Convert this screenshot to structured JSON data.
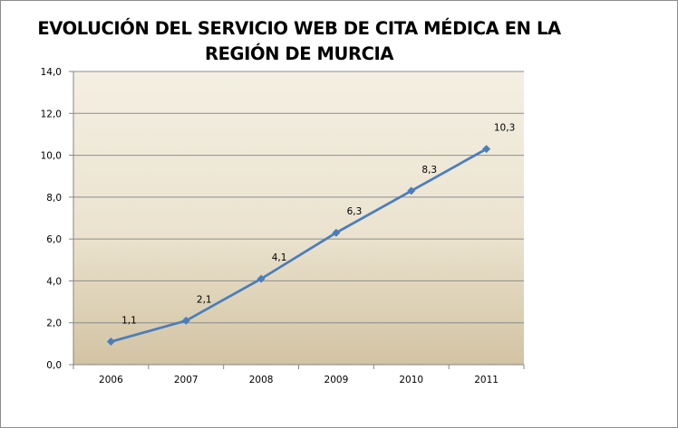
{
  "chart_data": {
    "type": "line",
    "title_lines": [
      "EVOLUCIÓN DEL SERVICIO WEB DE CITA MÉDICA EN LA",
      "REGIÓN DE MURCIA"
    ],
    "categories": [
      "2006",
      "2007",
      "2008",
      "2009",
      "2010",
      "2011"
    ],
    "series": [
      {
        "values": [
          1.1,
          2.1,
          4.1,
          6.3,
          8.3,
          10.3
        ],
        "labels": [
          "1,1",
          "2,1",
          "4,1",
          "6,3",
          "8,3",
          "10,3"
        ],
        "color": "#4a7ebb",
        "marker": "diamond"
      }
    ],
    "ylim": [
      0,
      14
    ],
    "yticks": [
      "0,0",
      "2,0",
      "4,0",
      "6,0",
      "8,0",
      "10,0",
      "12,0",
      "14,0"
    ],
    "grid": true,
    "legend": "none",
    "colors": {
      "plot_top": "#f3efe2",
      "plot_bottom": "#d2c3a2",
      "gridline": "#8c8c8c"
    }
  }
}
